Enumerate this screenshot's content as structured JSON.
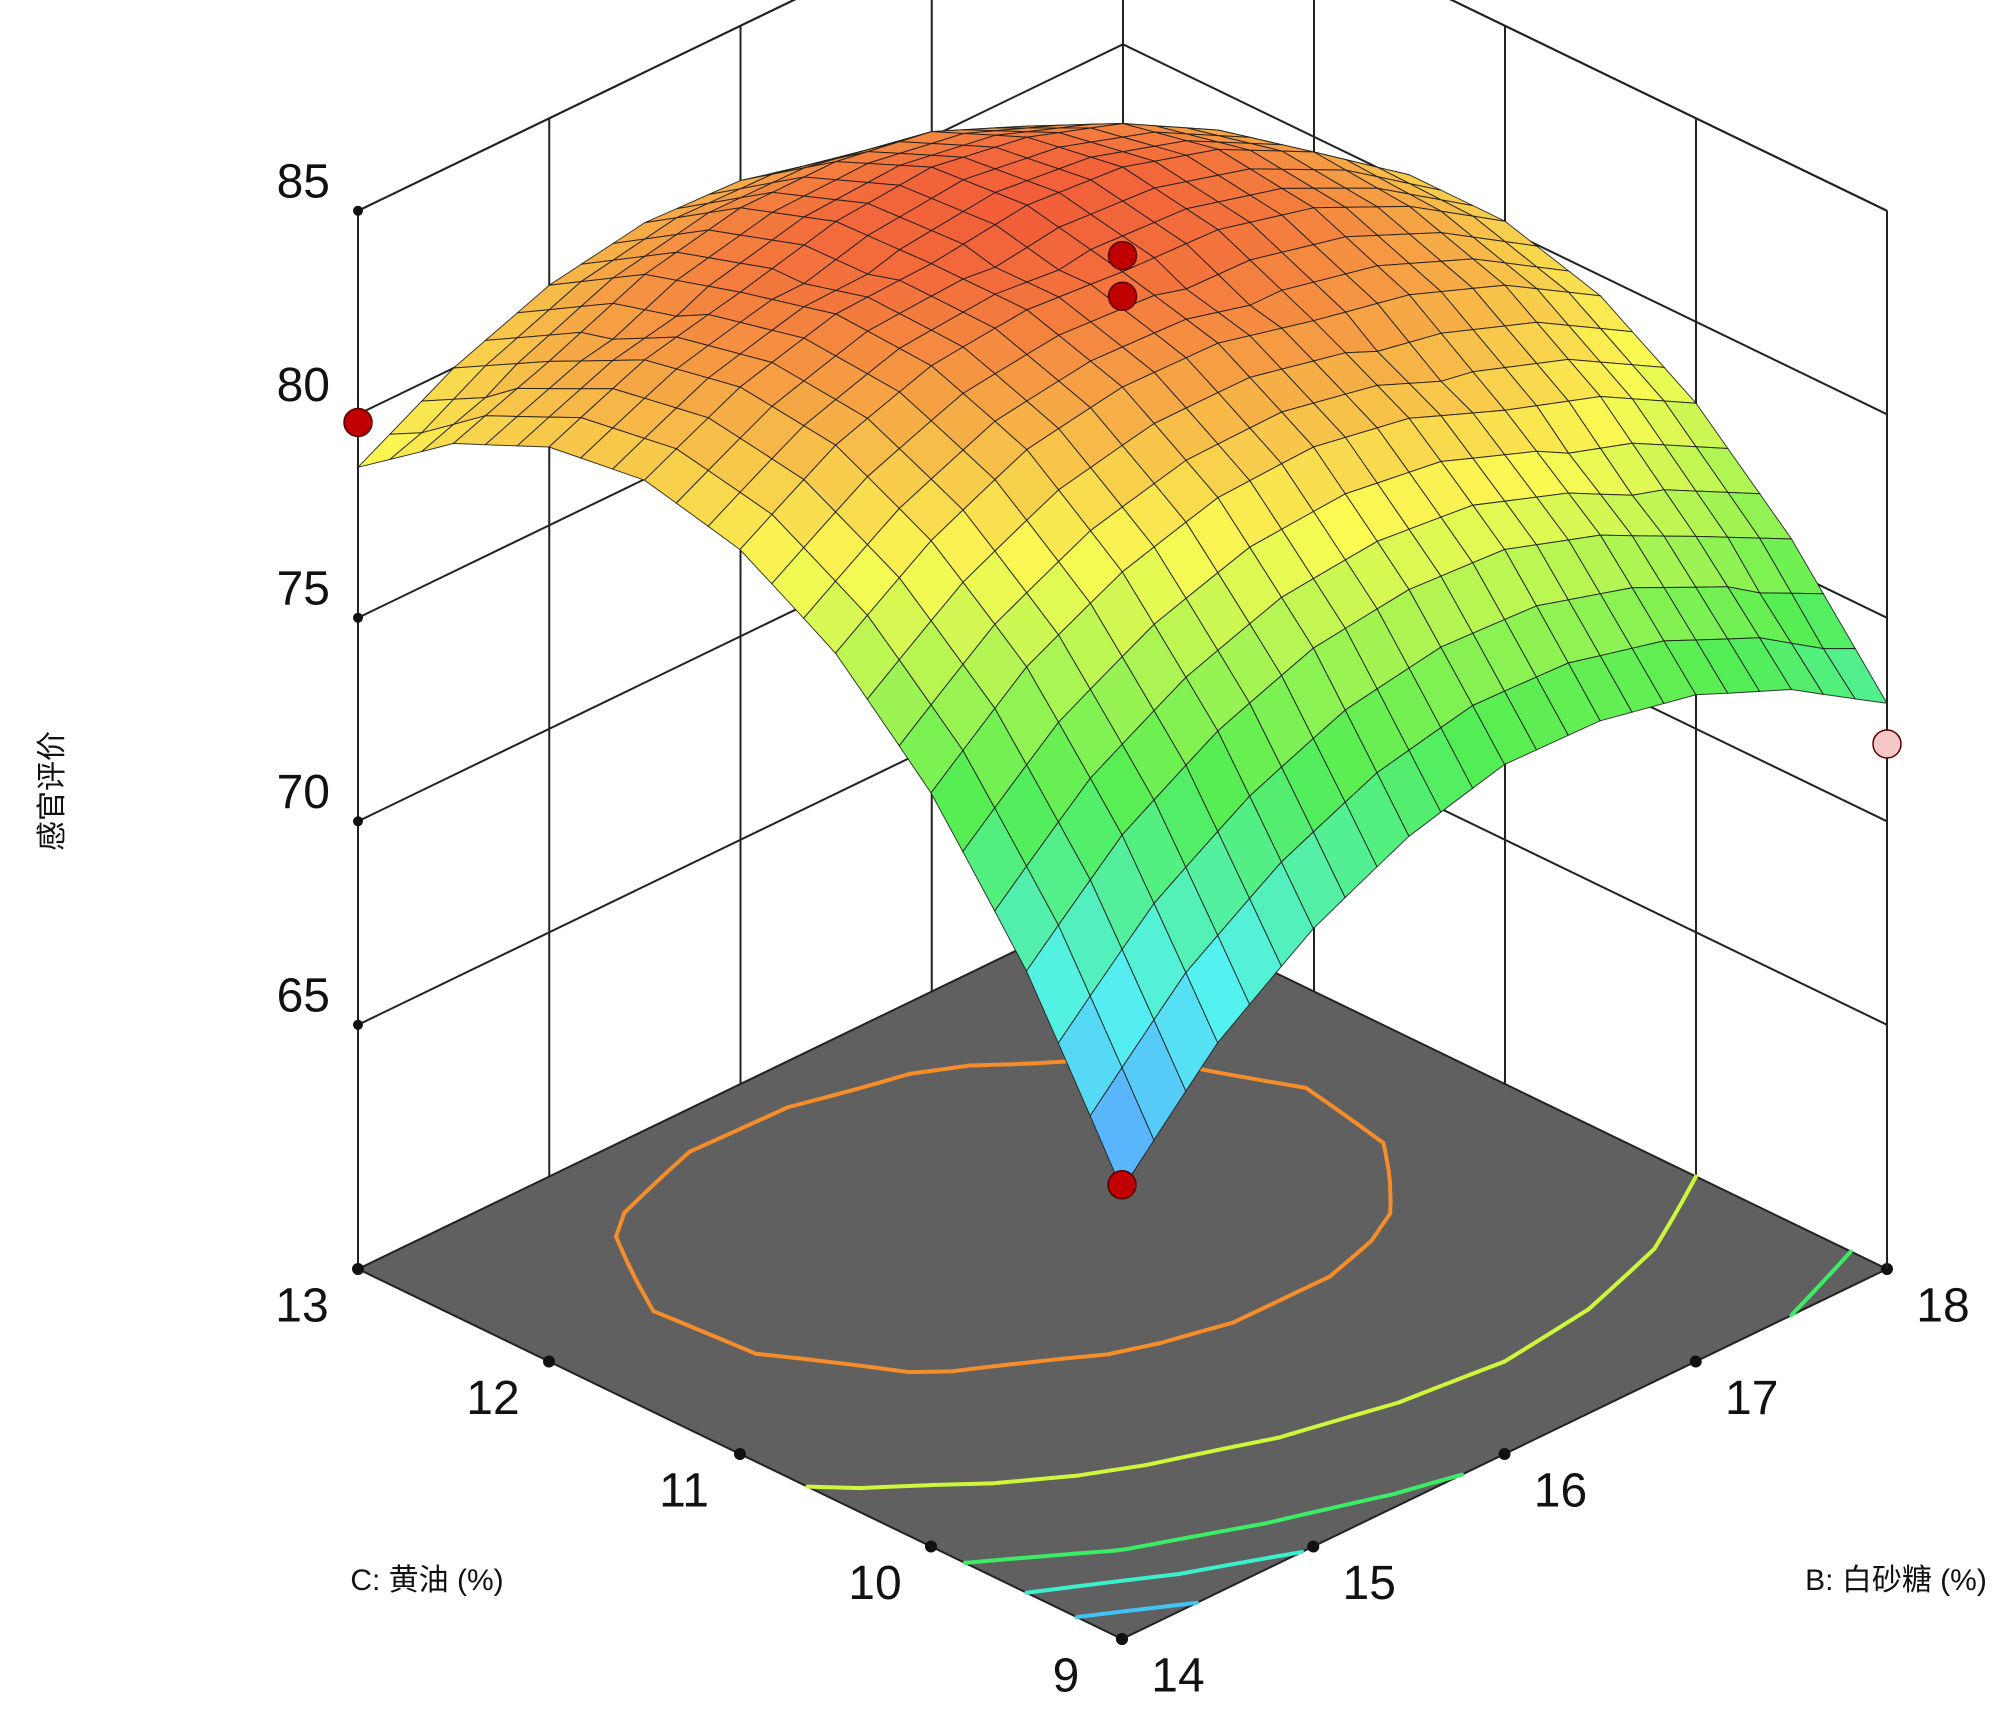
{
  "chart_data": {
    "type": "surface",
    "zlabel": "感官评价",
    "xlabel": "B: 白砂糖 (%)",
    "ylabel": "C: 黄油 (%)",
    "x": [
      14,
      14.5,
      15,
      15.5,
      16,
      16.5,
      17,
      17.5,
      18
    ],
    "y": [
      9,
      9.5,
      10,
      10.5,
      11,
      11.5,
      12,
      12.5,
      13
    ],
    "z": [
      [
        68.2,
        70.5,
        72.2,
        73.5,
        74.4,
        74.7,
        74.6,
        74,
        72.9
      ],
      [
        72,
        74.2,
        75.8,
        77,
        77.7,
        78,
        77.7,
        77,
        75.8
      ],
      [
        75.1,
        77.2,
        78.7,
        79.8,
        80.4,
        80.5,
        80.1,
        79.3,
        78
      ],
      [
        77.5,
        79.4,
        80.9,
        81.8,
        82.3,
        82.3,
        81.8,
        80.9,
        79.5
      ],
      [
        79.2,
        81,
        82.3,
        83.1,
        83.5,
        83.4,
        82.8,
        81.7,
        80.2
      ],
      [
        80.2,
        81.8,
        83,
        83.7,
        84,
        83.8,
        83.1,
        81.9,
        80.2
      ],
      [
        80.4,
        81.9,
        83,
        83.6,
        83.8,
        83.4,
        82.6,
        81.3,
        79.5
      ],
      [
        79.9,
        81.3,
        82.3,
        82.8,
        82.8,
        82.4,
        81.4,
        80,
        78.1
      ],
      [
        78.7,
        80,
        80.9,
        81.3,
        81.2,
        80.6,
        79.5,
        78,
        76
      ]
    ],
    "xlim": [
      14,
      18
    ],
    "xticks": [
      14,
      15,
      16,
      17,
      18
    ],
    "ylim": [
      9,
      13
    ],
    "yticks": [
      9,
      10,
      11,
      12,
      13
    ],
    "zlim": [
      59,
      85
    ],
    "zticks": [
      65,
      70,
      75,
      80,
      85
    ],
    "contours": [
      70,
      72,
      74,
      78,
      82
    ],
    "floor_color": "#606060",
    "points": {
      "x": [
        16,
        16,
        14,
        18,
        14
      ],
      "y": [
        11,
        11,
        13,
        9,
        9
      ],
      "z": [
        83.9,
        82.9,
        79.8,
        71.9,
        68.3
      ],
      "colors": [
        "#c00000",
        "#c00000",
        "#c00000",
        "#f8c8c8",
        "#c00000"
      ]
    }
  }
}
